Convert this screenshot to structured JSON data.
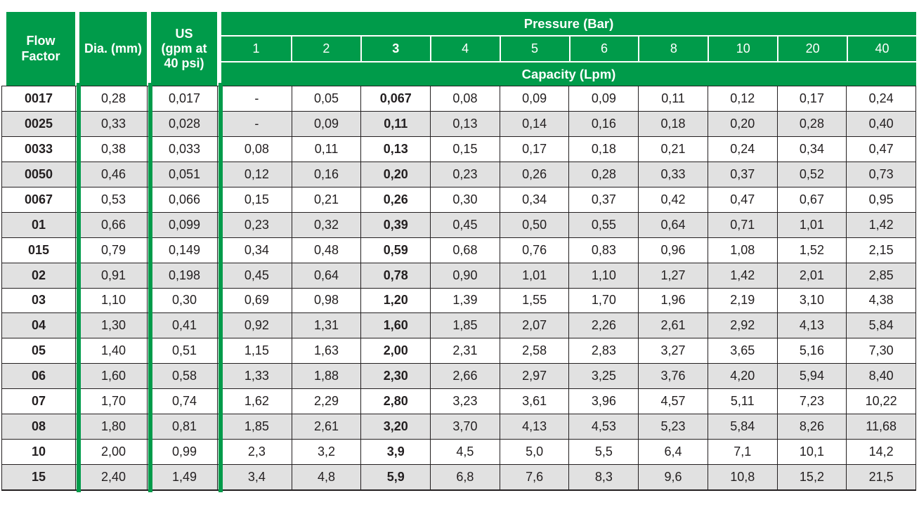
{
  "header": {
    "flow_factor_label": "Flow\nFactor",
    "dia_label": "Dia. (mm)",
    "us_label": "US\n(gpm at\n40 psi)",
    "pressure_title": "Pressure (Bar)",
    "capacity_title": "Capacity (Lpm)",
    "pressures": [
      "1",
      "2",
      "3",
      "4",
      "5",
      "6",
      "8",
      "10",
      "20",
      "40"
    ],
    "emphasized_pressure": "3"
  },
  "colors": {
    "green": "#009B4A",
    "row_alt": "#E1E1E1",
    "line": "#231F20",
    "text": "#231F20",
    "header_text": "#FFFFFF"
  },
  "rows": [
    {
      "flow_factor": "0017",
      "dia": "0,28",
      "us": "0,017",
      "capacities": [
        "-",
        "0,05",
        "0,067",
        "0,08",
        "0,09",
        "0,09",
        "0,11",
        "0,12",
        "0,17",
        "0,24"
      ]
    },
    {
      "flow_factor": "0025",
      "dia": "0,33",
      "us": "0,028",
      "capacities": [
        "-",
        "0,09",
        "0,11",
        "0,13",
        "0,14",
        "0,16",
        "0,18",
        "0,20",
        "0,28",
        "0,40"
      ]
    },
    {
      "flow_factor": "0033",
      "dia": "0,38",
      "us": "0,033",
      "capacities": [
        "0,08",
        "0,11",
        "0,13",
        "0,15",
        "0,17",
        "0,18",
        "0,21",
        "0,24",
        "0,34",
        "0,47"
      ]
    },
    {
      "flow_factor": "0050",
      "dia": "0,46",
      "us": "0,051",
      "capacities": [
        "0,12",
        "0,16",
        "0,20",
        "0,23",
        "0,26",
        "0,28",
        "0,33",
        "0,37",
        "0,52",
        "0,73"
      ]
    },
    {
      "flow_factor": "0067",
      "dia": "0,53",
      "us": "0,066",
      "capacities": [
        "0,15",
        "0,21",
        "0,26",
        "0,30",
        "0,34",
        "0,37",
        "0,42",
        "0,47",
        "0,67",
        "0,95"
      ]
    },
    {
      "flow_factor": "01",
      "dia": "0,66",
      "us": "0,099",
      "capacities": [
        "0,23",
        "0,32",
        "0,39",
        "0,45",
        "0,50",
        "0,55",
        "0,64",
        "0,71",
        "1,01",
        "1,42"
      ]
    },
    {
      "flow_factor": "015",
      "dia": "0,79",
      "us": "0,149",
      "capacities": [
        "0,34",
        "0,48",
        "0,59",
        "0,68",
        "0,76",
        "0,83",
        "0,96",
        "1,08",
        "1,52",
        "2,15"
      ]
    },
    {
      "flow_factor": "02",
      "dia": "0,91",
      "us": "0,198",
      "capacities": [
        "0,45",
        "0,64",
        "0,78",
        "0,90",
        "1,01",
        "1,10",
        "1,27",
        "1,42",
        "2,01",
        "2,85"
      ]
    },
    {
      "flow_factor": "03",
      "dia": "1,10",
      "us": "0,30",
      "capacities": [
        "0,69",
        "0,98",
        "1,20",
        "1,39",
        "1,55",
        "1,70",
        "1,96",
        "2,19",
        "3,10",
        "4,38"
      ]
    },
    {
      "flow_factor": "04",
      "dia": "1,30",
      "us": "0,41",
      "capacities": [
        "0,92",
        "1,31",
        "1,60",
        "1,85",
        "2,07",
        "2,26",
        "2,61",
        "2,92",
        "4,13",
        "5,84"
      ]
    },
    {
      "flow_factor": "05",
      "dia": "1,40",
      "us": "0,51",
      "capacities": [
        "1,15",
        "1,63",
        "2,00",
        "2,31",
        "2,58",
        "2,83",
        "3,27",
        "3,65",
        "5,16",
        "7,30"
      ]
    },
    {
      "flow_factor": "06",
      "dia": "1,60",
      "us": "0,58",
      "capacities": [
        "1,33",
        "1,88",
        "2,30",
        "2,66",
        "2,97",
        "3,25",
        "3,76",
        "4,20",
        "5,94",
        "8,40"
      ]
    },
    {
      "flow_factor": "07",
      "dia": "1,70",
      "us": "0,74",
      "capacities": [
        "1,62",
        "2,29",
        "2,80",
        "3,23",
        "3,61",
        "3,96",
        "4,57",
        "5,11",
        "7,23",
        "10,22"
      ]
    },
    {
      "flow_factor": "08",
      "dia": "1,80",
      "us": "0,81",
      "capacities": [
        "1,85",
        "2,61",
        "3,20",
        "3,70",
        "4,13",
        "4,53",
        "5,23",
        "5,84",
        "8,26",
        "11,68"
      ]
    },
    {
      "flow_factor": "10",
      "dia": "2,00",
      "us": "0,99",
      "capacities": [
        "2,3",
        "3,2",
        "3,9",
        "4,5",
        "5,0",
        "5,5",
        "6,4",
        "7,1",
        "10,1",
        "14,2"
      ]
    },
    {
      "flow_factor": "15",
      "dia": "2,40",
      "us": "1,49",
      "capacities": [
        "3,4",
        "4,8",
        "5,9",
        "6,8",
        "7,6",
        "8,3",
        "9,6",
        "10,8",
        "15,2",
        "21,5"
      ]
    }
  ]
}
